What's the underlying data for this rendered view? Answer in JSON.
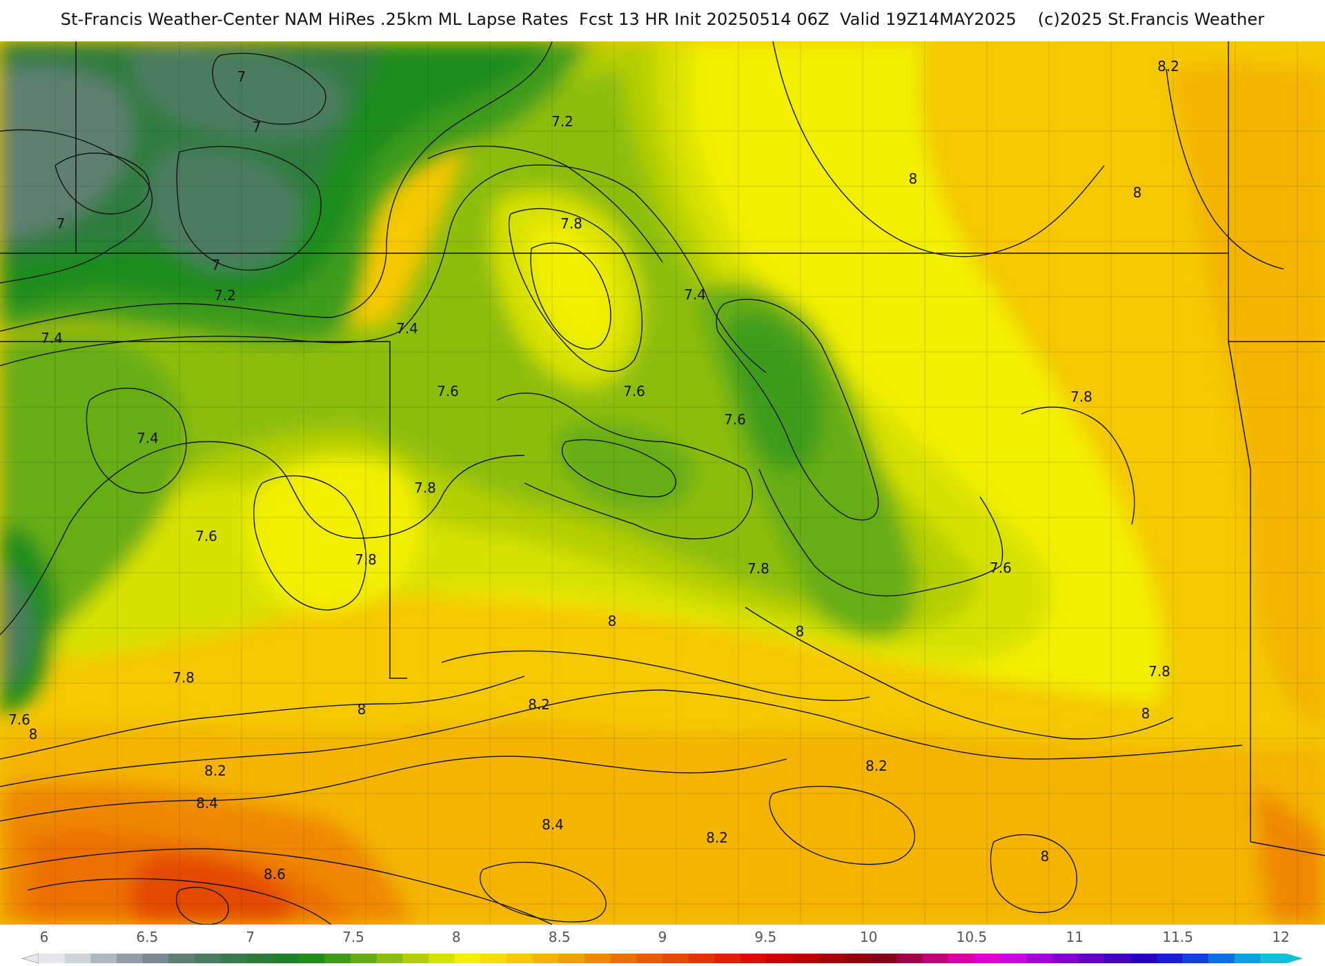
{
  "title": "St-Francis Weather-Center NAM HiRes .25km ML Lapse Rates  Fcst 13 HR Init 20250514 06Z  Valid 19Z14MAY2025    (c)2025 St.Francis Weather",
  "contour_labels": [
    "7",
    "7",
    "7",
    "7",
    "7.2",
    "7.2",
    "7.4",
    "7.4",
    "7.4",
    "7.4",
    "7.6",
    "7.6",
    "7.6",
    "7.6",
    "7.6",
    "7.6",
    "7.8",
    "7.8",
    "7.8",
    "7.8",
    "7.8",
    "7.8",
    "7.8",
    "8",
    "8",
    "8",
    "8",
    "8",
    "8",
    "8",
    "8",
    "8.2",
    "8.2",
    "8.2",
    "8.2",
    "8.2",
    "8.4",
    "8.4",
    "8.6"
  ],
  "scale": {
    "ticks": [
      "6",
      "6.5",
      "7",
      "7.5",
      "8",
      "8.5",
      "9",
      "9.5",
      "10",
      "10.5",
      "11",
      "11.5",
      "12"
    ],
    "colors": [
      "#e6e6ea",
      "#cfd3da",
      "#b2b8c2",
      "#959ca8",
      "#7a8a92",
      "#5f7f72",
      "#4b7b60",
      "#3b7a4c",
      "#2d7b3c",
      "#1e8026",
      "#1f8c1c",
      "#3e9c1a",
      "#66ad15",
      "#8cbd0f",
      "#b4cf05",
      "#d7e100",
      "#f2f000",
      "#f7dc00",
      "#f5c800",
      "#f4b400",
      "#f29f00",
      "#ef8800",
      "#ec7000",
      "#e85a00",
      "#e44a00",
      "#e23600",
      "#e12000",
      "#dd0c00",
      "#cf0000",
      "#bd0000",
      "#a80008",
      "#94000e",
      "#86001c",
      "#a3004a",
      "#c2007a",
      "#dc00a8",
      "#e000d0",
      "#cc00e0",
      "#a400d8",
      "#8200d0",
      "#6200c8",
      "#4200c0",
      "#2a00c0",
      "#1a1ad0",
      "#1040e0",
      "#0a70e4",
      "#08a0e0",
      "#10c0d8"
    ]
  }
}
